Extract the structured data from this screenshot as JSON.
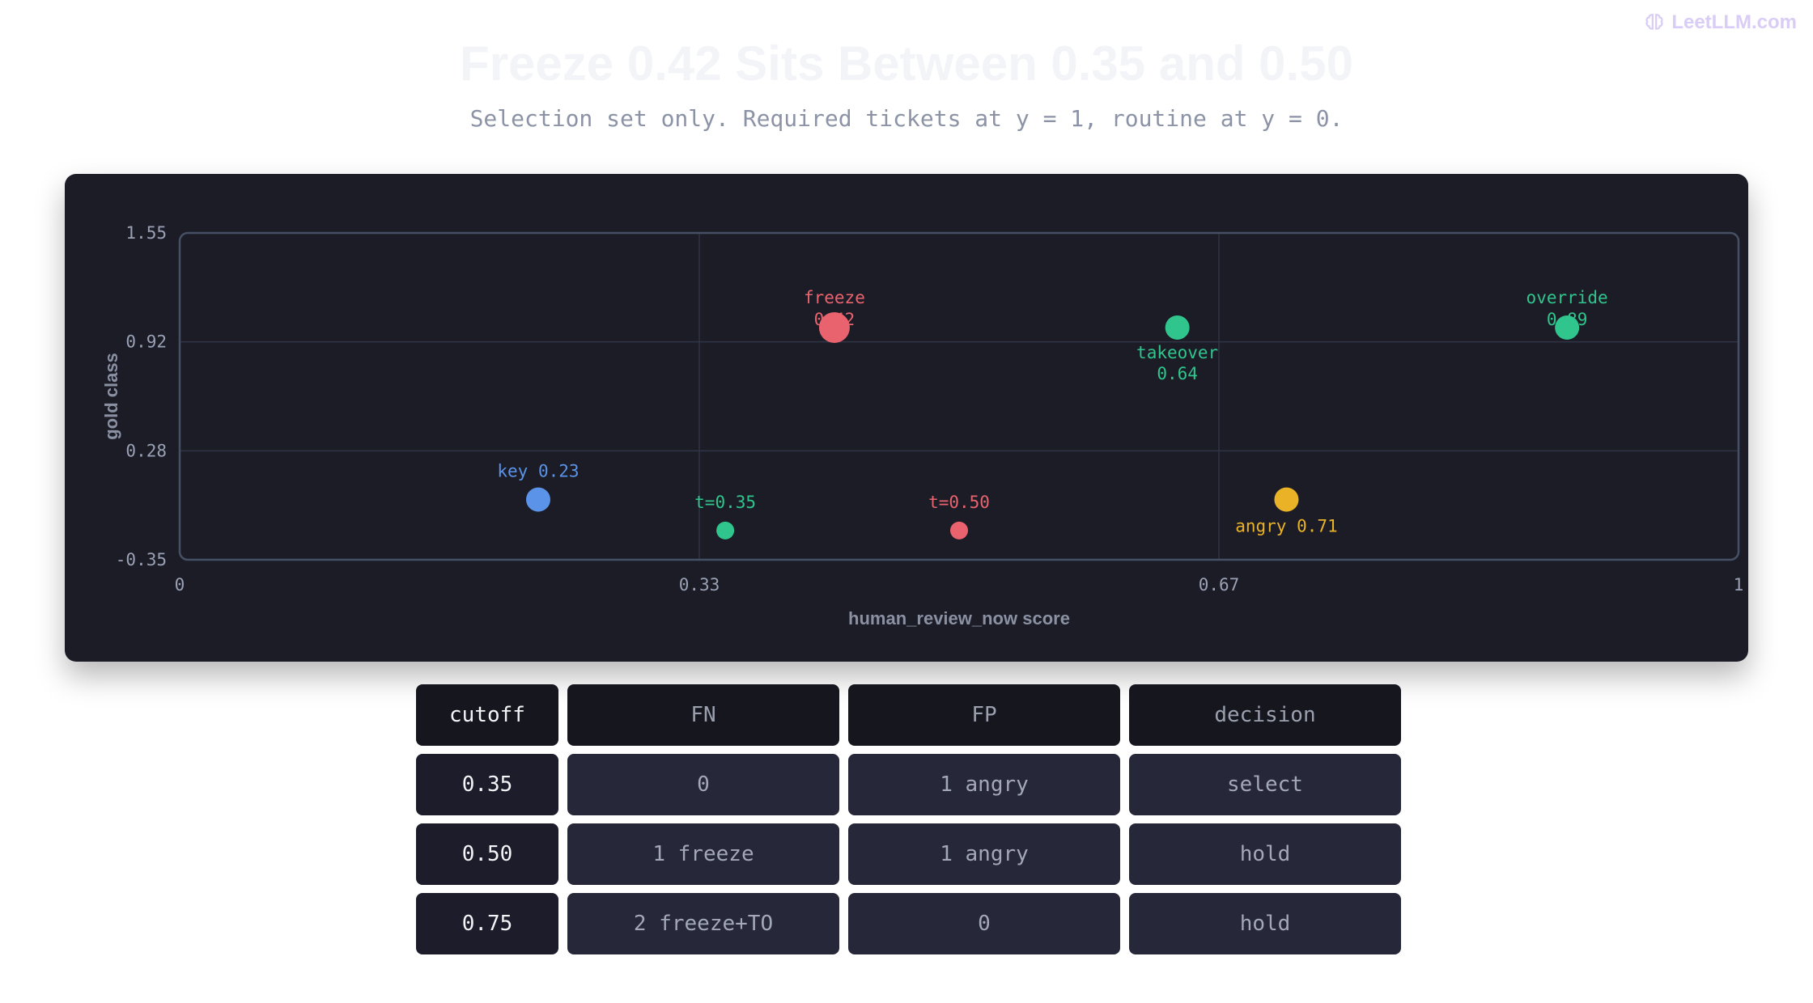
{
  "brand": {
    "name": "LeetLLM.com",
    "icon": "brain-icon"
  },
  "header": {
    "title": "Freeze 0.42 Sits Between 0.35 and 0.50",
    "subtitle": "Selection set only. Required tickets at y = 1, routine at y = 0."
  },
  "colors": {
    "red": "#e8636e",
    "green": "#2fc58c",
    "blue": "#5b93e8",
    "yellow": "#eab227",
    "grid": "#2f3544",
    "frame": "#465064"
  },
  "chart_data": {
    "type": "scatter",
    "xlabel": "human_review_now score",
    "ylabel": "gold class",
    "xlim": [
      0,
      1
    ],
    "ylim": [
      -0.35,
      1.55
    ],
    "x_ticks": [
      "0",
      "0.33",
      "0.67",
      "1"
    ],
    "y_ticks": [
      "1.55",
      "0.92",
      "0.28",
      "-0.35"
    ],
    "grid": true,
    "points": [
      {
        "label_line1": "freeze",
        "label_line2": "0.42",
        "x": 0.42,
        "y": 1.0,
        "color": "red",
        "size": "large",
        "label_pos": "above"
      },
      {
        "label_line1": "takeover",
        "label_line2": "0.64",
        "x": 0.64,
        "y": 1.0,
        "color": "green",
        "size": "medium",
        "label_pos": "below"
      },
      {
        "label_line1": "override",
        "label_line2": "0.89",
        "x": 0.89,
        "y": 1.0,
        "color": "green",
        "size": "medium",
        "label_pos": "above"
      },
      {
        "label_line1": "key 0.23",
        "label_line2": "",
        "x": 0.23,
        "y": 0.0,
        "color": "blue",
        "size": "medium",
        "label_pos": "above"
      },
      {
        "label_line1": "angry 0.71",
        "label_line2": "",
        "x": 0.71,
        "y": 0.0,
        "color": "yellow",
        "size": "medium",
        "label_pos": "below"
      },
      {
        "label_line1": "t=0.35",
        "label_line2": "",
        "x": 0.35,
        "y": -0.18,
        "color": "green",
        "size": "small",
        "label_pos": "above"
      },
      {
        "label_line1": "t=0.50",
        "label_line2": "",
        "x": 0.5,
        "y": -0.18,
        "color": "red",
        "size": "small",
        "label_pos": "above"
      }
    ]
  },
  "table": {
    "headers": [
      "cutoff",
      "FN",
      "FP",
      "decision"
    ],
    "rows": [
      [
        "0.35",
        "0",
        "1 angry",
        "select"
      ],
      [
        "0.50",
        "1 freeze",
        "1 angry",
        "hold"
      ],
      [
        "0.75",
        "2 freeze+TO",
        "0",
        "hold"
      ]
    ]
  }
}
